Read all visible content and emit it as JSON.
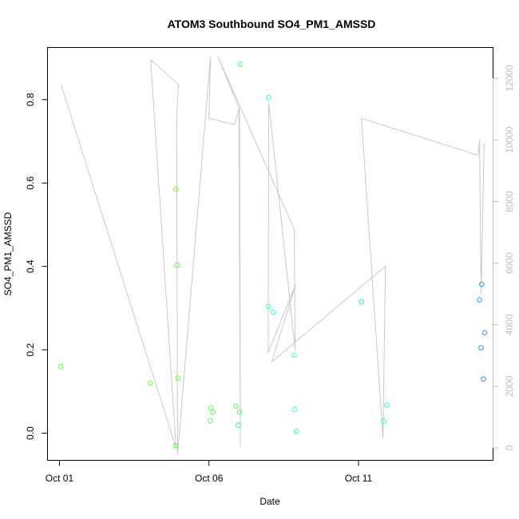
{
  "chart_data": {
    "type": "scatter",
    "title": "ATOM3 Southbound SO4_PM1_AMSSD",
    "xlabel": "Date",
    "ylabel": "SO4_PM1_AMSSD",
    "y2label": "",
    "x_ticks": [
      "Oct 01",
      "Oct 06",
      "Oct 11"
    ],
    "x_tick_values": [
      0,
      5,
      10
    ],
    "xlim": [
      -0.4,
      14.5
    ],
    "y_ticks": [
      "0.0",
      "0.2",
      "0.4",
      "0.6",
      "0.8"
    ],
    "y_tick_values": [
      0.0,
      0.2,
      0.4,
      0.6,
      0.8
    ],
    "ylim": [
      -0.065,
      0.925
    ],
    "y2_ticks": [
      "0",
      "2000",
      "4000",
      "6000",
      "8000",
      "10000",
      "12000"
    ],
    "y2_tick_values": [
      0,
      2000,
      4000,
      6000,
      8000,
      10000,
      12000
    ],
    "y2lim": [
      -400,
      13000
    ],
    "grid": false,
    "series": [
      {
        "kind": "points",
        "values": [
          {
            "x": 0.04,
            "y": 0.16,
            "color": "#66ff33"
          },
          {
            "x": 3.04,
            "y": 0.12,
            "color": "#66ff33"
          },
          {
            "x": 3.9,
            "y": 0.585,
            "color": "#66ff44"
          },
          {
            "x": 3.93,
            "y": 0.403,
            "color": "#66ff44"
          },
          {
            "x": 3.97,
            "y": 0.132,
            "color": "#66ff44"
          },
          {
            "x": 3.88,
            "y": -0.03,
            "color": "#66ff44"
          },
          {
            "x": 5.07,
            "y": 0.061,
            "color": "#55ff55"
          },
          {
            "x": 5.13,
            "y": 0.05,
            "color": "#55ff55"
          },
          {
            "x": 5.04,
            "y": 0.03,
            "color": "#55ff55"
          },
          {
            "x": 5.9,
            "y": 0.065,
            "color": "#44ff66"
          },
          {
            "x": 5.98,
            "y": 0.019,
            "color": "#44ff66"
          },
          {
            "x": 6.02,
            "y": 0.051,
            "color": "#44ff66"
          },
          {
            "x": 6.05,
            "y": 0.885,
            "color": "#44ff66"
          },
          {
            "x": 7.0,
            "y": 0.805,
            "color": "#33ffaa"
          },
          {
            "x": 6.98,
            "y": 0.304,
            "color": "#33ffaa"
          },
          {
            "x": 7.15,
            "y": 0.29,
            "color": "#33ffaa"
          },
          {
            "x": 7.85,
            "y": 0.187,
            "color": "#33ffbb"
          },
          {
            "x": 7.87,
            "y": 0.057,
            "color": "#33ffbb"
          },
          {
            "x": 7.92,
            "y": 0.005,
            "color": "#33ffbb"
          },
          {
            "x": 10.1,
            "y": 0.315,
            "color": "#33ddff"
          },
          {
            "x": 10.85,
            "y": 0.029,
            "color": "#33eedd"
          },
          {
            "x": 10.95,
            "y": 0.067,
            "color": "#33eedd"
          },
          {
            "x": 14.05,
            "y": 0.32,
            "color": "#2299ff"
          },
          {
            "x": 14.12,
            "y": 0.357,
            "color": "#2299ff"
          },
          {
            "x": 14.22,
            "y": 0.241,
            "color": "#2299ff"
          },
          {
            "x": 14.1,
            "y": 0.205,
            "color": "#2299ff"
          },
          {
            "x": 14.18,
            "y": 0.13,
            "color": "#2299ff"
          }
        ]
      },
      {
        "kind": "line",
        "axis": "right",
        "color": "#c8c8c8",
        "values": [
          {
            "x": 0.05,
            "y2": 11800
          },
          {
            "x": 3.9,
            "y2": 0
          },
          {
            "x": 3.05,
            "y2": 12600
          },
          {
            "x": 3.98,
            "y2": 11800
          },
          {
            "x": 3.92,
            "y2": 10700
          },
          {
            "x": 3.95,
            "y2": -200
          },
          {
            "x": 5.05,
            "y2": 12700
          },
          {
            "x": 5.0,
            "y2": 10700
          },
          {
            "x": 5.85,
            "y2": 10500
          },
          {
            "x": 6.0,
            "y2": 11000
          },
          {
            "x": 6.05,
            "y2": 50
          },
          {
            "x": 6.02,
            "y2": 11000
          },
          {
            "x": 5.3,
            "y2": 12700
          },
          {
            "x": 7.85,
            "y2": 7100
          },
          {
            "x": 7.88,
            "y2": 3200
          },
          {
            "x": 7.0,
            "y2": 11200
          },
          {
            "x": 6.98,
            "y2": 3100
          },
          {
            "x": 7.9,
            "y2": 5300
          },
          {
            "x": 7.1,
            "y2": 2800
          },
          {
            "x": 10.9,
            "y2": 5900
          },
          {
            "x": 10.82,
            "y2": 300
          },
          {
            "x": 10.1,
            "y2": 10700
          },
          {
            "x": 14.0,
            "y2": 9500
          },
          {
            "x": 14.05,
            "y2": 10000
          },
          {
            "x": 14.1,
            "y2": 5000
          },
          {
            "x": 14.2,
            "y2": 9900
          }
        ]
      }
    ]
  }
}
